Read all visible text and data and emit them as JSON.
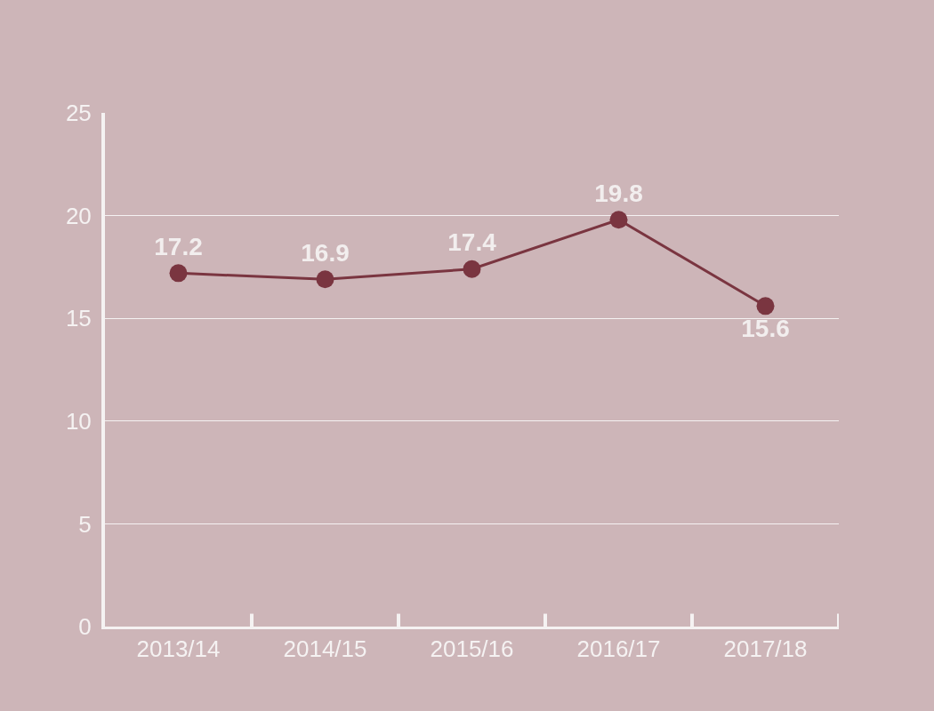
{
  "chart_data": {
    "type": "line",
    "categories": [
      "2013/14",
      "2014/15",
      "2015/16",
      "2016/17",
      "2017/18"
    ],
    "series": [
      {
        "color": "#7a3540",
        "values": [
          17.2,
          16.9,
          17.4,
          19.8,
          15.6
        ]
      }
    ],
    "ylim": [
      0,
      25
    ],
    "yticks": [
      0,
      5,
      10,
      15,
      20,
      25
    ],
    "grid": "y",
    "legend": false,
    "marker": "circle",
    "line_style": "solid",
    "data_labels": true
  }
}
